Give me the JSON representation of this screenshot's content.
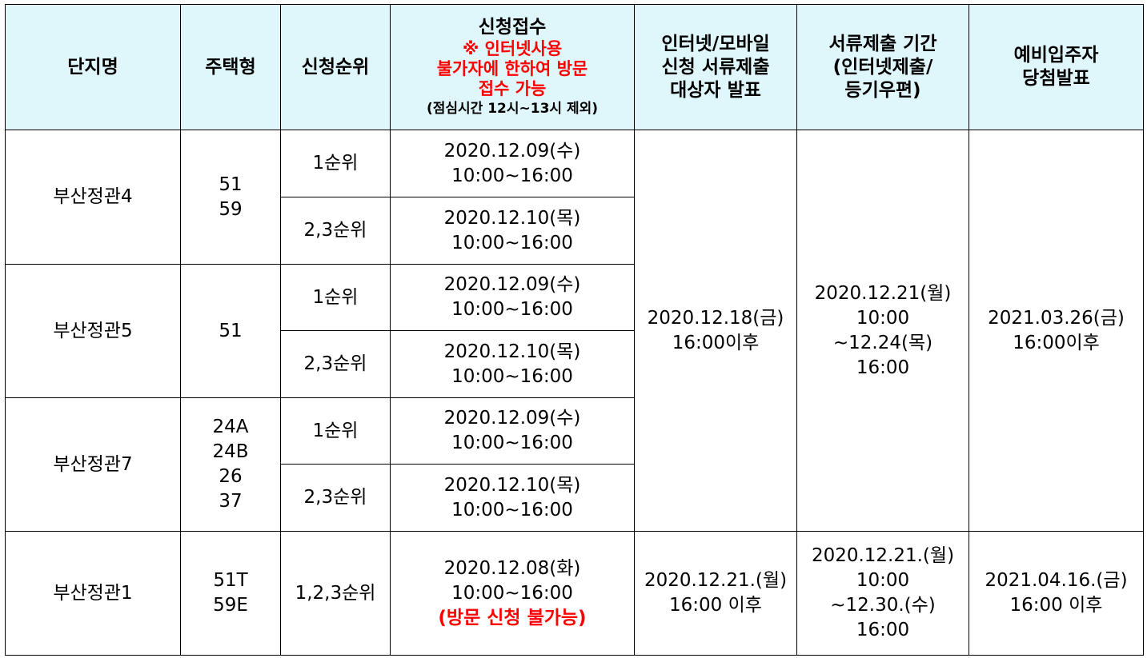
{
  "headers": {
    "complex": "단지명",
    "house_type": "주택형",
    "rank": "신청순위",
    "application": {
      "title": "신청접수",
      "note_lines": [
        "※ 인터넷사용",
        "불가자에 한하여 방문",
        "접수 가능"
      ],
      "small": "(점심시간 12시~13시 제외)"
    },
    "announce": [
      "인터넷/모바일",
      "신청 서류제출",
      "대상자 발표"
    ],
    "submission": [
      "서류제출 기간",
      "(인터넷제출/",
      "등기우편)"
    ],
    "winner": [
      "예비입주자",
      "당첨발표"
    ]
  },
  "groups": [
    {
      "complex": "부산정관4",
      "house_types": [
        "51",
        "59"
      ],
      "rows": [
        {
          "rank": "1순위",
          "date": "2020.12.09(수)",
          "time": "10:00~16:00"
        },
        {
          "rank": "2,3순위",
          "date": "2020.12.10(목)",
          "time": "10:00~16:00"
        }
      ]
    },
    {
      "complex": "부산정관5",
      "house_types": [
        "51"
      ],
      "rows": [
        {
          "rank": "1순위",
          "date": "2020.12.09(수)",
          "time": "10:00~16:00"
        },
        {
          "rank": "2,3순위",
          "date": "2020.12.10(목)",
          "time": "10:00~16:00"
        }
      ]
    },
    {
      "complex": "부산정관7",
      "house_types": [
        "24A",
        "24B",
        "26",
        "37"
      ],
      "rows": [
        {
          "rank": "1순위",
          "date": "2020.12.09(수)",
          "time": "10:00~16:00"
        },
        {
          "rank": "2,3순위",
          "date": "2020.12.10(목)",
          "time": "10:00~16:00"
        }
      ]
    }
  ],
  "shared": {
    "announce": [
      "2020.12.18(금)",
      "16:00이후"
    ],
    "submission": [
      "2020.12.21(월)",
      "10:00",
      "~12.24(목)",
      "16:00"
    ],
    "winner": [
      "2021.03.26(금)",
      "16:00이후"
    ]
  },
  "last": {
    "complex": "부산정관1",
    "house_types": [
      "51T",
      "59E"
    ],
    "rank": "1,2,3순위",
    "date": "2020.12.08(화)",
    "time": "10:00~16:00",
    "note": "(방문 신청 불가능)",
    "announce": [
      "2020.12.21.(월)",
      "16:00 이후"
    ],
    "submission": [
      "2020.12.21.(월)",
      "10:00",
      "~12.30.(수)",
      "16:00"
    ],
    "winner": [
      "2021.04.16.(금)",
      "16:00 이후"
    ]
  }
}
